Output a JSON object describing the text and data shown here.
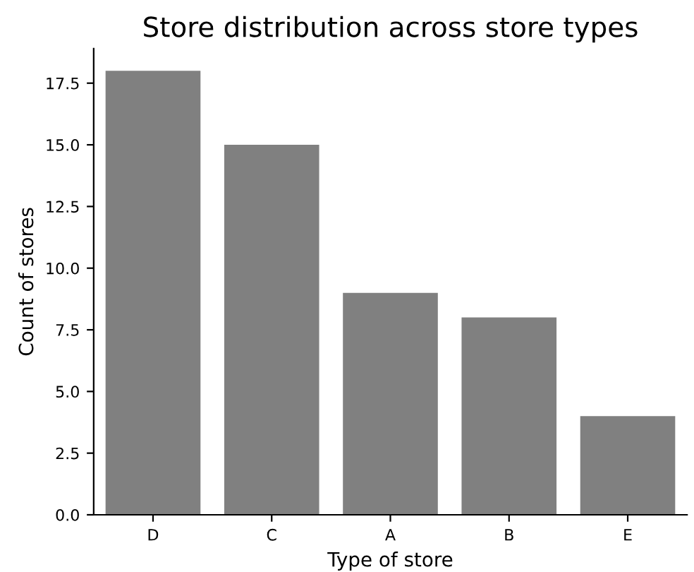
{
  "chart_data": {
    "type": "bar",
    "title": "Store distribution across store types",
    "xlabel": "Type of store",
    "ylabel": "Count of stores",
    "categories": [
      "D",
      "C",
      "A",
      "B",
      "E"
    ],
    "values": [
      18,
      15,
      9,
      8,
      4
    ],
    "color": "#808080",
    "ylim": [
      0,
      18.9
    ],
    "yticks": [
      {
        "value": 0,
        "label": "0.0"
      },
      {
        "value": 2.5,
        "label": "2.5"
      },
      {
        "value": 5,
        "label": "5.0"
      },
      {
        "value": 7.5,
        "label": "7.5"
      },
      {
        "value": 10,
        "label": "10.0"
      },
      {
        "value": 12.5,
        "label": "12.5"
      },
      {
        "value": 15,
        "label": "15.0"
      },
      {
        "value": 17.5,
        "label": "17.5"
      }
    ],
    "grid": false
  }
}
